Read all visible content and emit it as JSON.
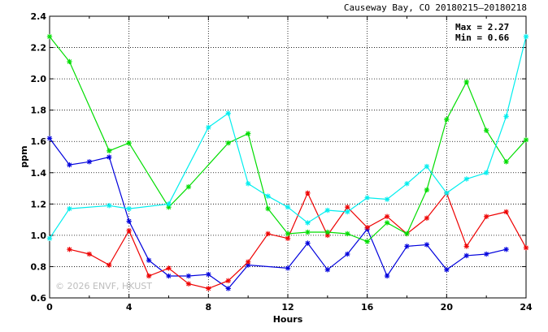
{
  "chart_data": {
    "type": "line",
    "title": "Causeway Bay, CO 20180215–20180218",
    "xlabel": "Hours",
    "ylabel": "ppm",
    "xlim": [
      0,
      24
    ],
    "ylim": [
      0.6,
      2.4
    ],
    "x_ticks": [
      0,
      4,
      8,
      12,
      16,
      20,
      24
    ],
    "y_ticks": [
      0.6,
      0.8,
      1.0,
      1.2,
      1.4,
      1.6,
      1.8,
      2.0,
      2.2,
      2.4
    ],
    "grid": true,
    "annotations": [
      "Max = 2.27",
      "Min = 0.66"
    ],
    "watermark": "© 2026  ENVF, HKUST",
    "x": [
      0,
      1,
      2,
      3,
      4,
      5,
      6,
      7,
      8,
      9,
      10,
      11,
      12,
      13,
      14,
      15,
      16,
      17,
      18,
      19,
      20,
      21,
      22,
      23,
      24
    ],
    "series": [
      {
        "color": "#0000dd",
        "values": [
          1.62,
          1.45,
          1.47,
          1.5,
          1.09,
          0.84,
          0.74,
          0.74,
          0.75,
          0.66,
          0.81,
          null,
          0.79,
          0.95,
          0.78,
          0.88,
          1.04,
          0.74,
          0.93,
          0.94,
          0.78,
          0.87,
          0.88,
          0.91,
          null
        ]
      },
      {
        "color": "#ee0000",
        "values": [
          null,
          0.91,
          0.88,
          0.81,
          1.03,
          0.74,
          0.79,
          0.69,
          0.66,
          0.71,
          0.83,
          1.01,
          0.98,
          1.27,
          1.0,
          1.18,
          1.05,
          1.12,
          1.01,
          1.11,
          1.27,
          0.93,
          1.12,
          1.15,
          0.92
        ]
      },
      {
        "color": "#00dd00",
        "values": [
          2.27,
          2.11,
          null,
          1.54,
          1.59,
          null,
          1.18,
          1.31,
          null,
          1.59,
          1.65,
          1.17,
          1.01,
          1.02,
          1.02,
          1.01,
          0.96,
          1.08,
          1.01,
          1.29,
          1.74,
          1.98,
          1.67,
          1.47,
          1.61
        ]
      },
      {
        "color": "#00eeee",
        "values": [
          0.98,
          1.17,
          null,
          1.19,
          1.17,
          null,
          1.2,
          null,
          1.69,
          1.78,
          1.33,
          1.25,
          1.18,
          1.08,
          1.16,
          1.15,
          1.24,
          1.23,
          1.33,
          1.44,
          1.27,
          1.36,
          1.4,
          1.76,
          2.27
        ]
      }
    ]
  }
}
